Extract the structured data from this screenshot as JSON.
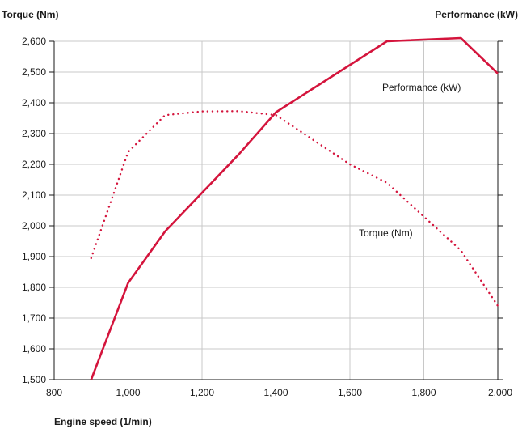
{
  "chart_data": {
    "type": "line",
    "title": "",
    "ylabel": "Torque (Nm)",
    "y2label": "Performance (kW)",
    "xlabel": "Engine speed (1/min)",
    "xlim": [
      800,
      2000
    ],
    "ylim": [
      1500,
      2600
    ],
    "y2lim": [
      190,
      400
    ],
    "xticks": [
      "800",
      "1,000",
      "1,200",
      "1,400",
      "1,600",
      "1,800",
      "2,000"
    ],
    "yticks": [
      "1,500",
      "1,600",
      "1,700",
      "1,800",
      "1,900",
      "2,000",
      "2,100",
      "2,200",
      "2,300",
      "2,400",
      "2,500",
      "2,600"
    ],
    "grid": true,
    "colors": {
      "line": "#d4143c",
      "grid": "#c8c8c8",
      "text": "#1a1a1a"
    },
    "series": [
      {
        "name": "Torque (Nm)",
        "axis": "left",
        "style": "dotted",
        "x": [
          900,
          1000,
          1100,
          1200,
          1300,
          1400,
          1500,
          1600,
          1700,
          1800,
          1900,
          2000
        ],
        "y": [
          1895,
          2240,
          2360,
          2372,
          2373,
          2360,
          2280,
          2200,
          2140,
          2030,
          1920,
          1740
        ]
      },
      {
        "name": "Performance (kW)",
        "axis": "right",
        "style": "solid",
        "x": [
          900,
          1000,
          1100,
          1300,
          1400,
          1700,
          1900,
          2000
        ],
        "y": [
          190,
          250,
          282,
          330,
          356,
          400,
          402,
          380
        ]
      }
    ]
  }
}
